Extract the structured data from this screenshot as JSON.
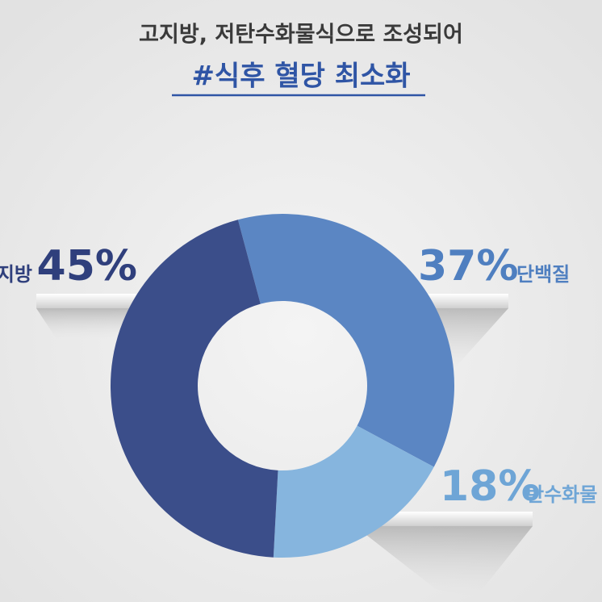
{
  "chart_data": {
    "type": "pie",
    "donut": true,
    "title": "고지방, 저탄수화물식으로 조성되어",
    "subtitle": "#식후 혈당 최소화",
    "categories": [
      "단백질",
      "탄수화물",
      "지방"
    ],
    "values": [
      37,
      18,
      45
    ],
    "value_labels": [
      "37%",
      "18%",
      "45%"
    ],
    "colors": [
      "#5b86c3",
      "#86b5de",
      "#3b4e8a"
    ],
    "label_colors": [
      "#4f7fc0",
      "#6ea5d6",
      "#2f3f7c"
    ]
  }
}
